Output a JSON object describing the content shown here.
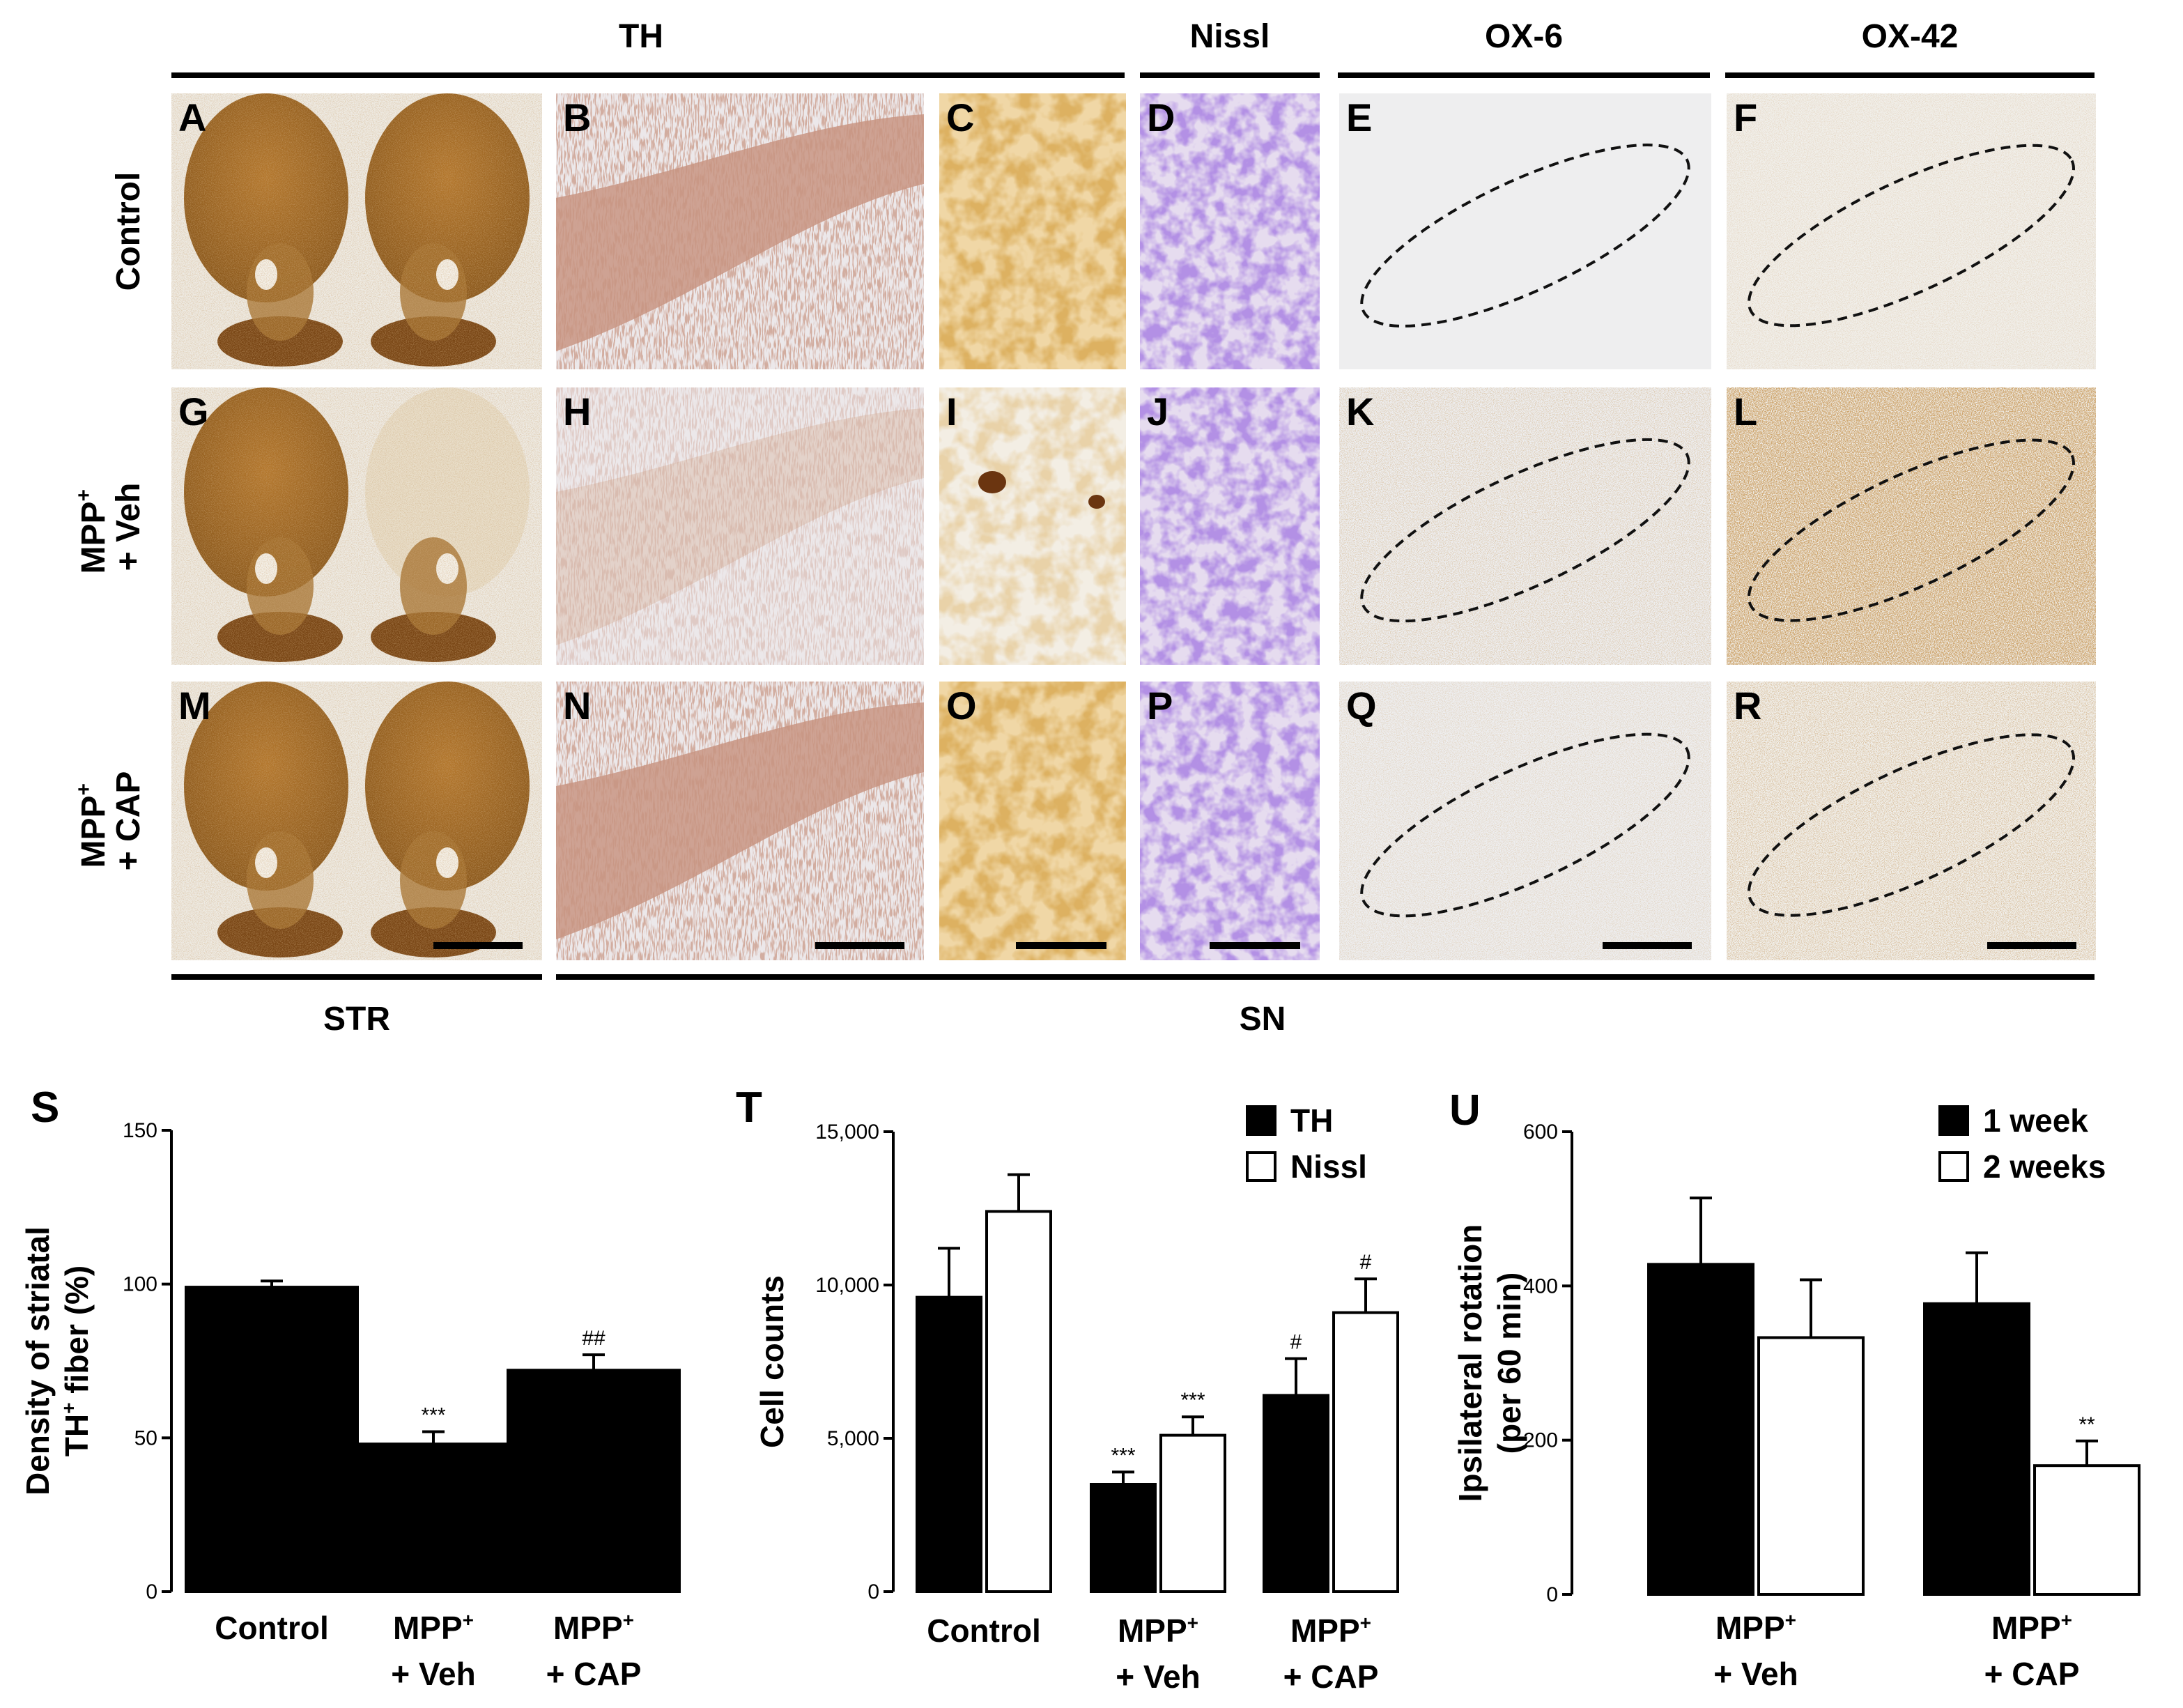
{
  "micrograph": {
    "col_headers": {
      "th": "TH",
      "nissl": "Nissl",
      "ox6": "OX-6",
      "ox42": "OX-42"
    },
    "row_labels": [
      {
        "line1": "Control",
        "sup": "",
        "line2": ""
      },
      {
        "line1": "MPP",
        "sup": "+",
        "line2": "+ Veh"
      },
      {
        "line1": "MPP",
        "sup": "+",
        "line2": "+ CAP"
      }
    ],
    "panel_letters": [
      [
        "A",
        "B",
        "C",
        "D",
        "E",
        "F"
      ],
      [
        "G",
        "H",
        "I",
        "J",
        "K",
        "L"
      ],
      [
        "M",
        "N",
        "O",
        "P",
        "Q",
        "R"
      ]
    ],
    "footer_labels": {
      "str": "STR",
      "sn": "SN"
    }
  },
  "chart_data": [
    {
      "panel": "S",
      "type": "bar",
      "ylabel_line1": "Density of striatal",
      "ylabel_line2_pre": "TH",
      "ylabel_line2_sup": "+",
      "ylabel_line2_post": " fiber (%)",
      "ylim": [
        0,
        150
      ],
      "yticks": [
        "0",
        "50",
        "100",
        "150"
      ],
      "categories": [
        {
          "line1": "Control",
          "sup": "",
          "line2": ""
        },
        {
          "line1": "MPP",
          "sup": "+",
          "line2": "+ Veh"
        },
        {
          "line1": "MPP",
          "sup": "+",
          "line2": "+ CAP"
        }
      ],
      "series": [
        {
          "color": "#000000",
          "fill": "filled",
          "values": [
            99,
            48,
            72
          ],
          "errors": [
            2,
            4,
            5
          ],
          "annotations": [
            "",
            "***",
            "##"
          ]
        }
      ]
    },
    {
      "panel": "T",
      "type": "bar",
      "ylabel": "Cell counts",
      "ylim": [
        0,
        15000
      ],
      "yticks": [
        "0",
        "5,000",
        "10,000",
        "15,000"
      ],
      "categories": [
        {
          "line1": "Control",
          "sup": "",
          "line2": ""
        },
        {
          "line1": "MPP",
          "sup": "+",
          "line2": "+ Veh"
        },
        {
          "line1": "MPP",
          "sup": "+",
          "line2": "+ CAP"
        }
      ],
      "legend_position": "top-right",
      "series": [
        {
          "name": "TH",
          "color": "#000000",
          "fill": "filled",
          "values": [
            9600,
            3500,
            6400
          ],
          "errors": [
            1600,
            400,
            1200
          ],
          "annotations": [
            "",
            "***",
            "#"
          ]
        },
        {
          "name": "Nissl",
          "color": "#000000",
          "fill": "open",
          "values": [
            12400,
            5100,
            9100
          ],
          "errors": [
            1200,
            600,
            1100
          ],
          "annotations": [
            "",
            "***",
            "#"
          ]
        }
      ]
    },
    {
      "panel": "U",
      "type": "bar",
      "ylabel_line1": "Ipsilateral rotation",
      "ylabel_line2": "(per 60 min)",
      "ylim": [
        0,
        600
      ],
      "yticks": [
        "0",
        "200",
        "400",
        "600"
      ],
      "categories": [
        {
          "line1": "MPP",
          "sup": "+",
          "line2": "+ Veh"
        },
        {
          "line1": "MPP",
          "sup": "+",
          "line2": "+ CAP"
        }
      ],
      "legend_position": "top-right",
      "series": [
        {
          "name": "1 week",
          "color": "#000000",
          "fill": "filled",
          "values": [
            428,
            377
          ],
          "errors": [
            86,
            66
          ],
          "annotations": [
            "",
            ""
          ]
        },
        {
          "name": "2 weeks",
          "color": "#000000",
          "fill": "open",
          "values": [
            333,
            167
          ],
          "errors": [
            75,
            32
          ],
          "annotations": [
            "",
            "**"
          ]
        }
      ]
    }
  ]
}
